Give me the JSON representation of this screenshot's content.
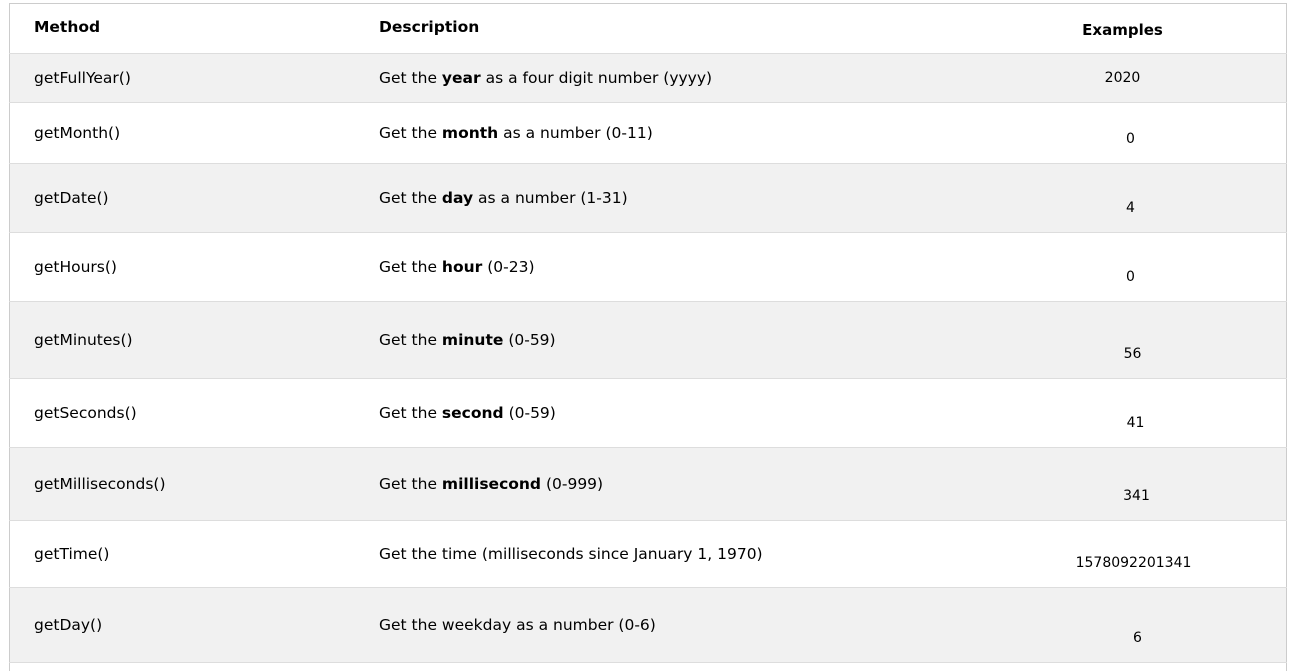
{
  "headers": {
    "method": "Method",
    "description": "Description",
    "examples": "Examples"
  },
  "rows": [
    {
      "method": "getFullYear()",
      "pre": "Get the ",
      "bold": "year",
      "post": " as a four digit number (yyyy)",
      "example": "2020"
    },
    {
      "method": "getMonth()",
      "pre": "Get the ",
      "bold": "month",
      "post": " as a number (0-11)",
      "example": "0"
    },
    {
      "method": "getDate()",
      "pre": "Get the ",
      "bold": "day",
      "post": " as a number (1-31)",
      "example": "4"
    },
    {
      "method": "getHours()",
      "pre": "Get the ",
      "bold": "hour",
      "post": " (0-23)",
      "example": "0"
    },
    {
      "method": "getMinutes()",
      "pre": "Get the ",
      "bold": "minute",
      "post": " (0-59)",
      "example": "56"
    },
    {
      "method": "getSeconds()",
      "pre": "Get the ",
      "bold": "second",
      "post": " (0-59)",
      "example": "41"
    },
    {
      "method": "getMilliseconds()",
      "pre": "Get the ",
      "bold": "millisecond",
      "post": " (0-999)",
      "example": "341"
    },
    {
      "method": "getTime()",
      "pre": "Get the time (milliseconds since January 1, 1970)",
      "bold": "",
      "post": "",
      "example": "1578092201341"
    },
    {
      "method": "getDay()",
      "pre": "Get the weekday as a number (0-6)",
      "bold": "",
      "post": "",
      "example": "6"
    }
  ]
}
